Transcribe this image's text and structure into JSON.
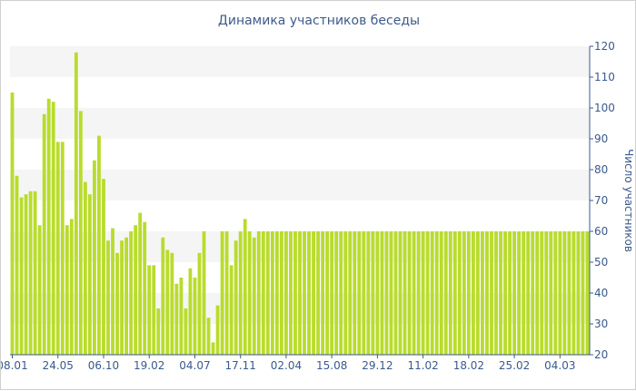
{
  "chart_data": {
    "type": "bar",
    "title": "Динамика участников беседы",
    "xlabel": "",
    "ylabel": "Число участников",
    "ylim": [
      20,
      120
    ],
    "y_ticks": [
      20,
      30,
      40,
      50,
      60,
      70,
      80,
      90,
      100,
      110,
      120
    ],
    "y_axis_position": "right",
    "grid": "alternating-bands",
    "legend": "none",
    "bar_color": "#b9dc2c",
    "x_tick_labels": [
      {
        "index": 0,
        "label": "08.01"
      },
      {
        "index": 10,
        "label": "24.05"
      },
      {
        "index": 20,
        "label": "06.10"
      },
      {
        "index": 30,
        "label": "19.02"
      },
      {
        "index": 40,
        "label": "04.07"
      },
      {
        "index": 50,
        "label": "17.11"
      },
      {
        "index": 60,
        "label": "02.04"
      },
      {
        "index": 70,
        "label": "15.08"
      },
      {
        "index": 80,
        "label": "29.12"
      },
      {
        "index": 90,
        "label": "11.02"
      },
      {
        "index": 100,
        "label": "18.02"
      },
      {
        "index": 110,
        "label": "25.02"
      },
      {
        "index": 120,
        "label": "04.03"
      }
    ],
    "values": [
      105,
      78,
      71,
      72,
      73,
      73,
      62,
      98,
      103,
      102,
      89,
      89,
      62,
      64,
      118,
      99,
      76,
      72,
      83,
      91,
      77,
      57,
      61,
      53,
      57,
      58,
      60,
      62,
      66,
      63,
      49,
      49,
      35,
      58,
      54,
      53,
      43,
      45,
      35,
      48,
      45,
      53,
      60,
      32,
      24,
      36,
      60,
      60,
      49,
      57,
      60,
      64,
      60,
      58,
      60,
      60,
      60,
      60,
      60,
      60,
      60,
      60,
      60,
      60,
      60,
      60,
      60,
      60,
      60,
      60,
      60,
      60,
      60,
      60,
      60,
      60,
      60,
      60,
      60,
      60,
      60,
      60,
      60,
      60,
      60,
      60,
      60,
      60,
      60,
      60,
      60,
      60,
      60,
      60,
      60,
      60,
      60,
      60,
      60,
      60,
      60,
      60,
      60,
      60,
      60,
      60,
      60,
      60,
      60,
      60,
      60,
      60,
      60,
      60,
      60,
      60,
      60,
      60,
      60,
      60,
      60,
      60,
      60,
      60,
      60,
      60,
      60
    ]
  }
}
